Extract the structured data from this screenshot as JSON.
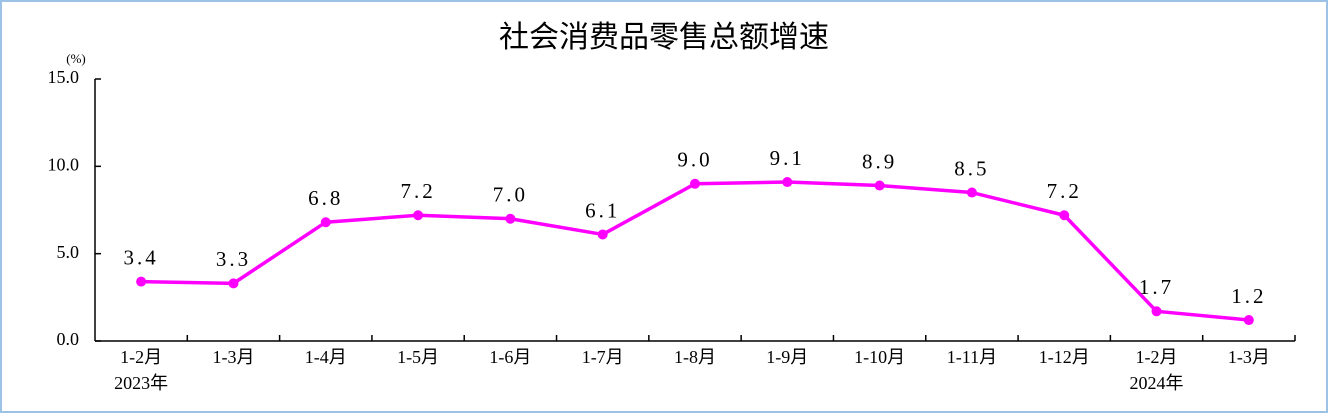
{
  "chart_data": {
    "type": "line",
    "title": "社会消费品零售总额增速",
    "y_unit": "(%)",
    "categories": [
      "1-2月",
      "1-3月",
      "1-4月",
      "1-5月",
      "1-6月",
      "1-7月",
      "1-8月",
      "1-9月",
      "1-10月",
      "1-11月",
      "1-12月",
      "1-2月",
      "1-3月"
    ],
    "year_labels": [
      "2023年",
      null,
      null,
      null,
      null,
      null,
      null,
      null,
      null,
      null,
      null,
      "2024年",
      null
    ],
    "series": [
      {
        "name": "社会消费品零售总额增速",
        "color": "#ff00ff",
        "values": [
          3.4,
          3.3,
          6.8,
          7.2,
          7.0,
          6.1,
          9.0,
          9.1,
          8.9,
          8.5,
          7.2,
          1.7,
          1.2
        ],
        "value_labels": [
          "3.4",
          "3.3",
          "6.8",
          "7.2",
          "7.0",
          "6.1",
          "9.0",
          "9.1",
          "8.9",
          "8.5",
          "7.2",
          "1.7",
          "1.2"
        ]
      }
    ],
    "ylim": [
      0,
      15
    ],
    "yticks": [
      {
        "value": 0,
        "label": "0.0"
      },
      {
        "value": 5,
        "label": "5.0"
      },
      {
        "value": 10,
        "label": "10.0"
      },
      {
        "value": 15,
        "label": "15.0"
      }
    ],
    "grid": false
  }
}
